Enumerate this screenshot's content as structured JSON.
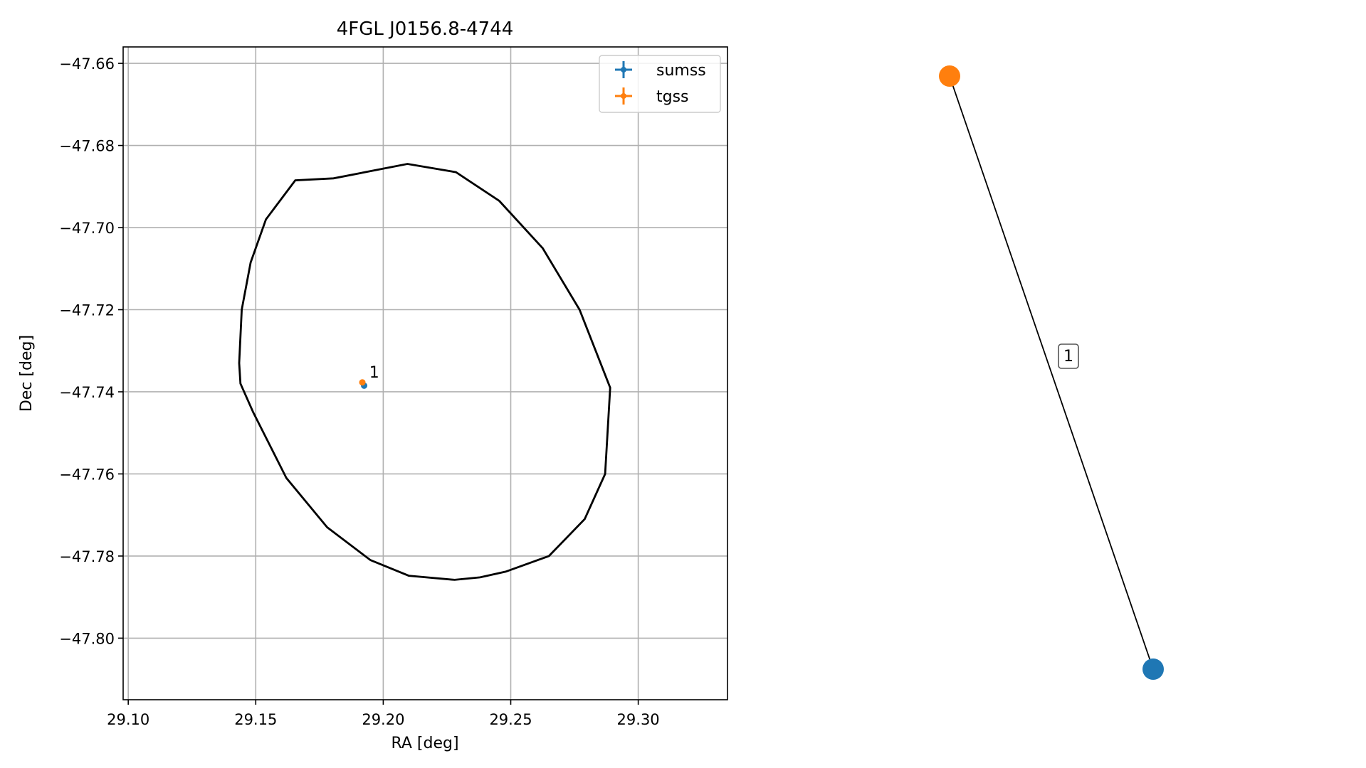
{
  "chart_data": [
    {
      "type": "scatter",
      "title": "4FGL J0156.8-4744",
      "xlabel": "RA [deg]",
      "ylabel": "Dec [deg]",
      "xlim": [
        29.098,
        29.335
      ],
      "ylim": [
        -47.815,
        -47.656
      ],
      "xticks": [
        29.1,
        29.15,
        29.2,
        29.25,
        29.3
      ],
      "xtick_labels": [
        "29.10",
        "29.15",
        "29.20",
        "29.25",
        "29.30"
      ],
      "yticks": [
        -47.66,
        -47.68,
        -47.7,
        -47.72,
        -47.74,
        -47.76,
        -47.78,
        -47.8
      ],
      "ytick_labels": [
        "−47.66",
        "−47.68",
        "−47.70",
        "−47.72",
        "−47.74",
        "−47.76",
        "−47.78",
        "−47.80"
      ],
      "grid": true,
      "legend_position": "top-right",
      "series": [
        {
          "name": "sumss",
          "color": "#1f77b4",
          "points": [
            {
              "x": 29.1925,
              "y": -47.7385
            }
          ]
        },
        {
          "name": "tgss",
          "color": "#ff7f0e",
          "points": [
            {
              "x": 29.1918,
              "y": -47.7377
            }
          ]
        }
      ],
      "annotations": [
        {
          "text": "1",
          "x": 29.1945,
          "y": -47.7365
        }
      ],
      "ellipse": {
        "color": "#000000",
        "points": [
          [
            29.1435,
            -47.733
          ],
          [
            29.1445,
            -47.72
          ],
          [
            29.148,
            -47.7085
          ],
          [
            29.154,
            -47.698
          ],
          [
            29.1655,
            -47.6885
          ],
          [
            29.1805,
            -47.688
          ],
          [
            29.2095,
            -47.6845
          ],
          [
            29.2285,
            -47.6865
          ],
          [
            29.2455,
            -47.6935
          ],
          [
            29.2625,
            -47.705
          ],
          [
            29.277,
            -47.72
          ],
          [
            29.289,
            -47.739
          ],
          [
            29.287,
            -47.76
          ],
          [
            29.279,
            -47.771
          ],
          [
            29.265,
            -47.78
          ],
          [
            29.248,
            -47.7838
          ],
          [
            29.238,
            -47.7852
          ],
          [
            29.228,
            -47.7858
          ],
          [
            29.21,
            -47.7848
          ],
          [
            29.195,
            -47.781
          ],
          [
            29.178,
            -47.773
          ],
          [
            29.162,
            -47.761
          ],
          [
            29.149,
            -47.745
          ],
          [
            29.144,
            -47.738
          ]
        ]
      }
    },
    {
      "type": "network",
      "nodes": [
        {
          "id": "tgss",
          "color": "#ff7f0e"
        },
        {
          "id": "sumss",
          "color": "#1f77b4"
        }
      ],
      "edges": [
        {
          "from": "tgss",
          "to": "sumss",
          "label": "1"
        }
      ]
    }
  ]
}
